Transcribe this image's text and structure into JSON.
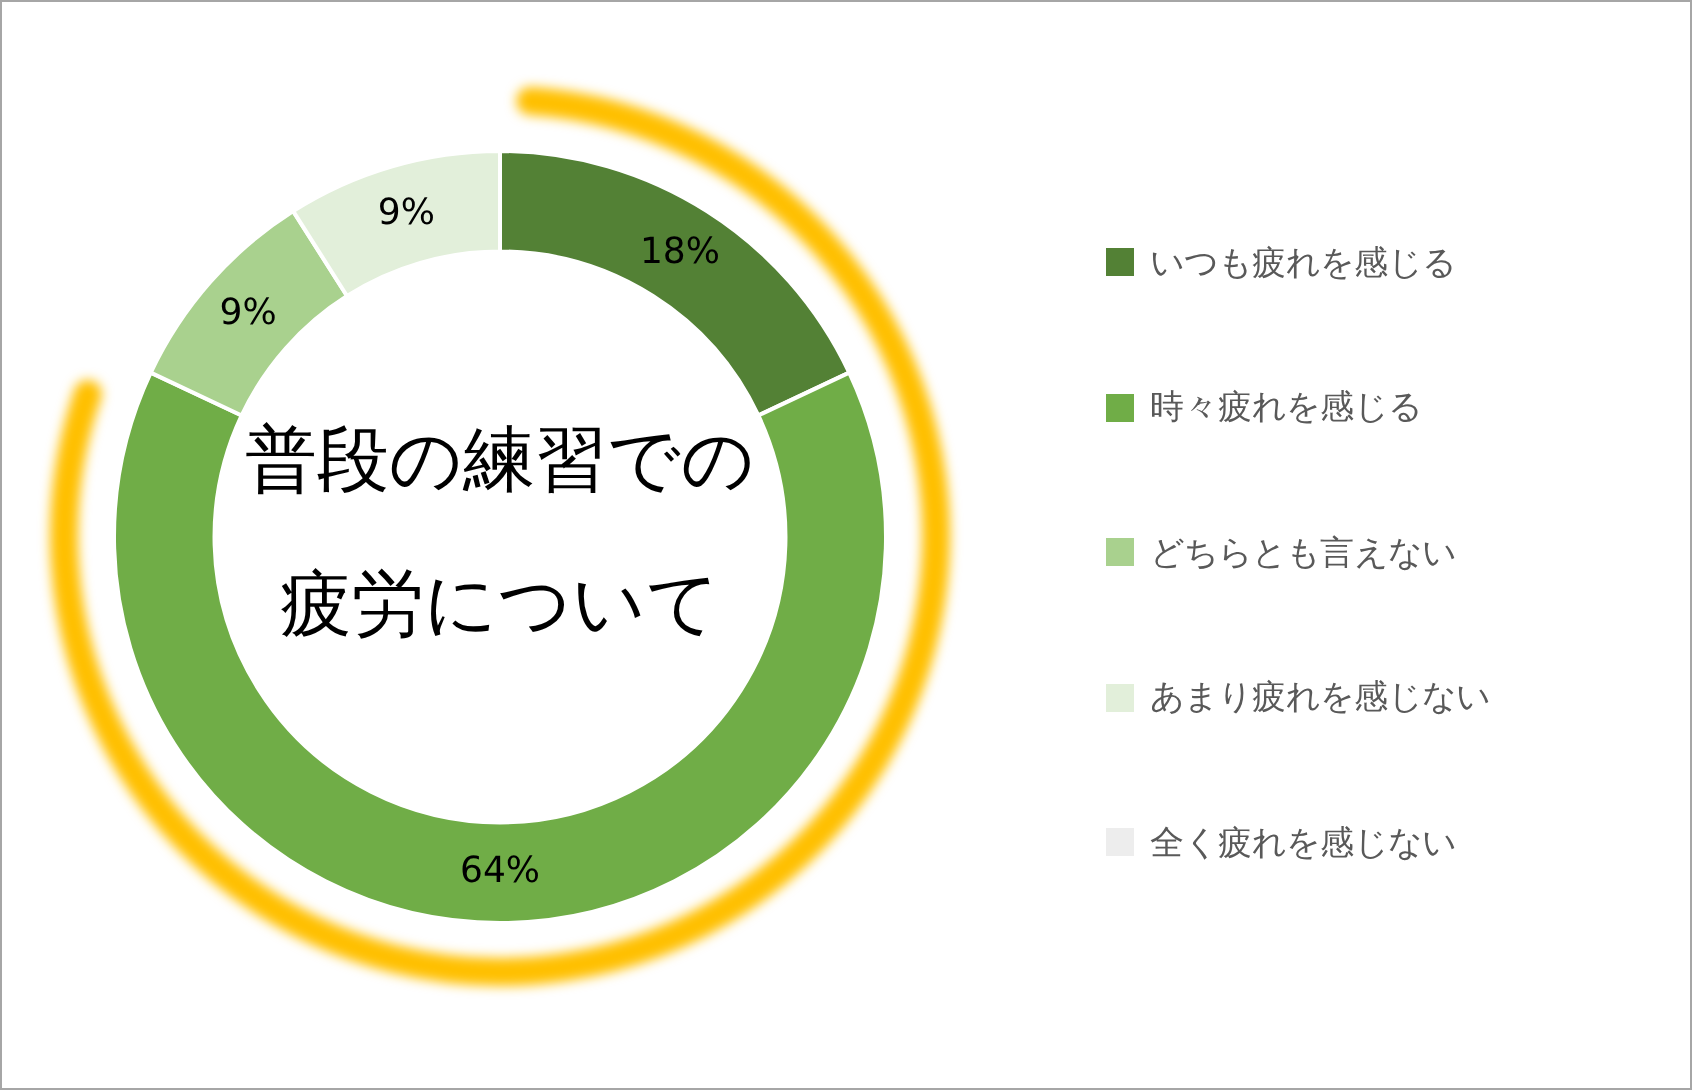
{
  "chart_data": {
    "type": "donut",
    "title": "普段の練習での疲労について",
    "categories": [
      "いつも疲れを感じる",
      "時々疲れを感じる",
      "どちらとも言えない",
      "あまり疲れを感じない",
      "全く疲れを感じない"
    ],
    "values": [
      18,
      64,
      9,
      9,
      0
    ],
    "colors": [
      "#538135",
      "#70ad47",
      "#a9d18e",
      "#e2efda",
      "#ededed"
    ],
    "value_labels": [
      "18%",
      "64%",
      "9%",
      "9%",
      null
    ],
    "legend": "right"
  }
}
